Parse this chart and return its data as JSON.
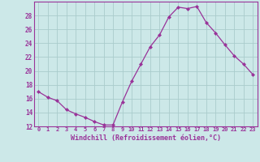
{
  "x": [
    0,
    1,
    2,
    3,
    4,
    5,
    6,
    7,
    8,
    9,
    10,
    11,
    12,
    13,
    14,
    15,
    16,
    17,
    18,
    19,
    20,
    21,
    22,
    23
  ],
  "y": [
    17.0,
    16.2,
    15.7,
    14.4,
    13.8,
    13.3,
    12.7,
    12.2,
    12.2,
    15.5,
    18.5,
    21.0,
    23.5,
    25.2,
    27.8,
    29.2,
    29.0,
    29.3,
    27.0,
    25.5,
    23.8,
    22.2,
    21.0,
    19.5
  ],
  "line_color": "#993399",
  "marker": "D",
  "marker_size": 2,
  "bg_color": "#cce8e8",
  "grid_color": "#aacccc",
  "xlabel": "Windchill (Refroidissement éolien,°C)",
  "xlabel_color": "#993399",
  "tick_color": "#993399",
  "ylim": [
    12,
    30
  ],
  "xlim": [
    -0.5,
    23.5
  ],
  "yticks": [
    12,
    14,
    16,
    18,
    20,
    22,
    24,
    26,
    28
  ],
  "xticks": [
    0,
    1,
    2,
    3,
    4,
    5,
    6,
    7,
    8,
    9,
    10,
    11,
    12,
    13,
    14,
    15,
    16,
    17,
    18,
    19,
    20,
    21,
    22,
    23
  ],
  "xtick_labels": [
    "0",
    "1",
    "2",
    "3",
    "4",
    "5",
    "6",
    "7",
    "8",
    "9",
    "10",
    "11",
    "12",
    "13",
    "14",
    "15",
    "16",
    "17",
    "18",
    "19",
    "20",
    "21",
    "22",
    "23"
  ]
}
